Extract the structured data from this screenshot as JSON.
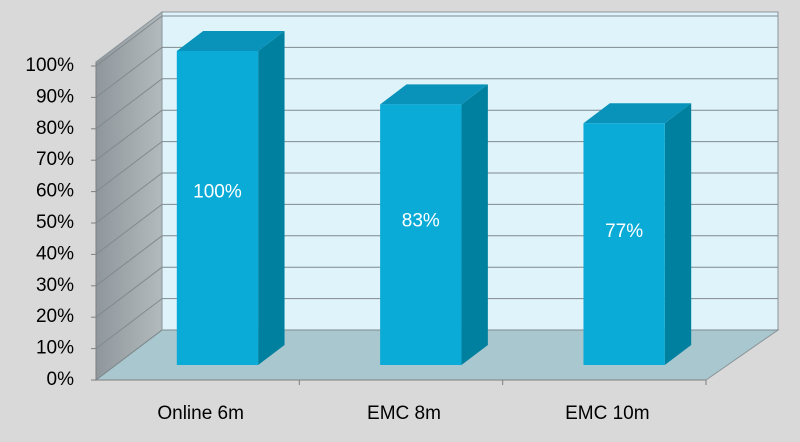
{
  "chart_data": {
    "type": "bar3d",
    "categories": [
      "Online 6m",
      "EMC 8m",
      "EMC 10m"
    ],
    "values": [
      100,
      83,
      77
    ],
    "value_labels": [
      "100%",
      "83%",
      "77%"
    ],
    "color": "#0aabd6",
    "ylim": [
      0,
      100
    ],
    "yticks": [
      {
        "value": 0,
        "label": "0%"
      },
      {
        "value": 10,
        "label": "10%"
      },
      {
        "value": 20,
        "label": "20%"
      },
      {
        "value": 30,
        "label": "30%"
      },
      {
        "value": 40,
        "label": "40%"
      },
      {
        "value": 50,
        "label": "50%"
      },
      {
        "value": 60,
        "label": "60%"
      },
      {
        "value": 70,
        "label": "70%"
      },
      {
        "value": 80,
        "label": "80%"
      },
      {
        "value": 90,
        "label": "90%"
      },
      {
        "value": 100,
        "label": "100%"
      }
    ],
    "grid": true
  }
}
